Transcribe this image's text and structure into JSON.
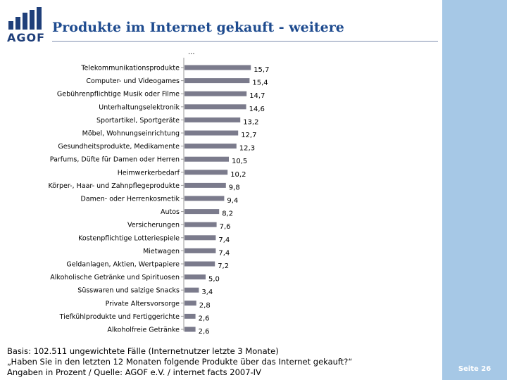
{
  "logo": {
    "text": "AGOF"
  },
  "slide": {
    "title": "Produkte im Internet gekauft - weitere",
    "page": "Seite 26"
  },
  "colors": {
    "bar": "#7b7b8c",
    "title": "#1e4b8f",
    "band": "#a6c8e6",
    "logo": "#1f3f7a"
  },
  "chart_data": {
    "type": "bar",
    "orientation": "horizontal",
    "title": "",
    "xlabel": "",
    "ylabel": "",
    "xlim": [
      0,
      16
    ],
    "continuation_label": "...",
    "categories": [
      "Telekommunikationsprodukte",
      "Computer- und Videogames",
      "Gebührenpflichtige Musik oder Filme",
      "Unterhaltungselektronik",
      "Sportartikel, Sportgeräte",
      "Möbel, Wohnungseinrichtung",
      "Gesundheitsprodukte, Medikamente",
      "Parfums, Düfte für Damen oder Herren",
      "Heimwerkerbedarf",
      "Körper-, Haar- und Zahnpflegeprodukte",
      "Damen- oder Herrenkosmetik",
      "Autos",
      "Versicherungen",
      "Kostenpflichtige Lotteriespiele",
      "Mietwagen",
      "Geldanlagen, Aktien, Wertpapiere",
      "Alkoholische Getränke und Spirituosen",
      "Süsswaren und salzige Snacks",
      "Private Altersvorsorge",
      "Tiefkühlprodukte und Fertiggerichte",
      "Alkoholfreie Getränke"
    ],
    "values": [
      15.7,
      15.4,
      14.7,
      14.6,
      13.2,
      12.7,
      12.3,
      10.5,
      10.2,
      9.8,
      9.4,
      8.2,
      7.6,
      7.4,
      7.4,
      7.2,
      5.0,
      3.4,
      2.8,
      2.6,
      2.6
    ],
    "value_labels": [
      "15,7",
      "15,4",
      "14,7",
      "14,6",
      "13,2",
      "12,7",
      "12,3",
      "10,5",
      "10,2",
      "9,8",
      "9,4",
      "8,2",
      "7,6",
      "7,4",
      "7,4",
      "7,2",
      "5,0",
      "3,4",
      "2,8",
      "2,6",
      "2,6"
    ]
  },
  "footer": {
    "line1": "Basis: 102.511 ungewichtete Fälle (Internetnutzer letzte 3 Monate)",
    "line2": "„Haben Sie in den letzten 12 Monaten folgende Produkte über das Internet gekauft?“",
    "line3": "Angaben in Prozent / Quelle: AGOF e.V. / internet facts 2007-IV"
  }
}
